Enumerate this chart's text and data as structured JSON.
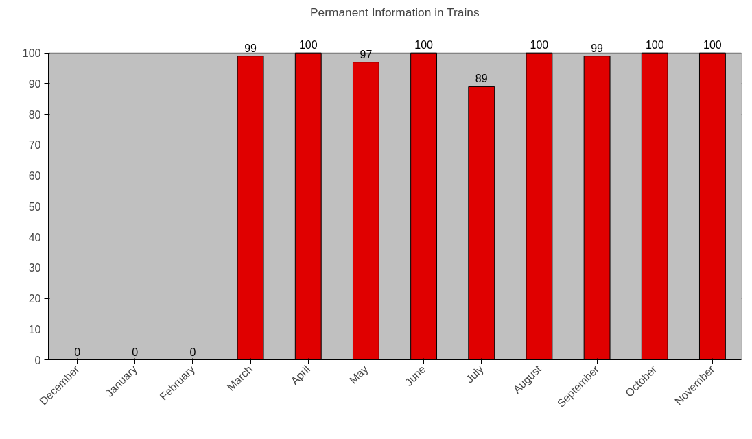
{
  "chart_data": {
    "type": "bar",
    "title": "Permanent Information in Trains",
    "categories": [
      "December",
      "January",
      "February",
      "March",
      "April",
      "May",
      "June",
      "July",
      "August",
      "September",
      "October",
      "November"
    ],
    "values": [
      0,
      0,
      0,
      99,
      100,
      97,
      100,
      89,
      100,
      99,
      100,
      100
    ],
    "color": "#e00000",
    "ylim": [
      0,
      100
    ],
    "yticks": [
      0,
      10,
      20,
      30,
      40,
      50,
      60,
      70,
      80,
      90,
      100
    ],
    "grid": "y",
    "data_labels": true
  }
}
